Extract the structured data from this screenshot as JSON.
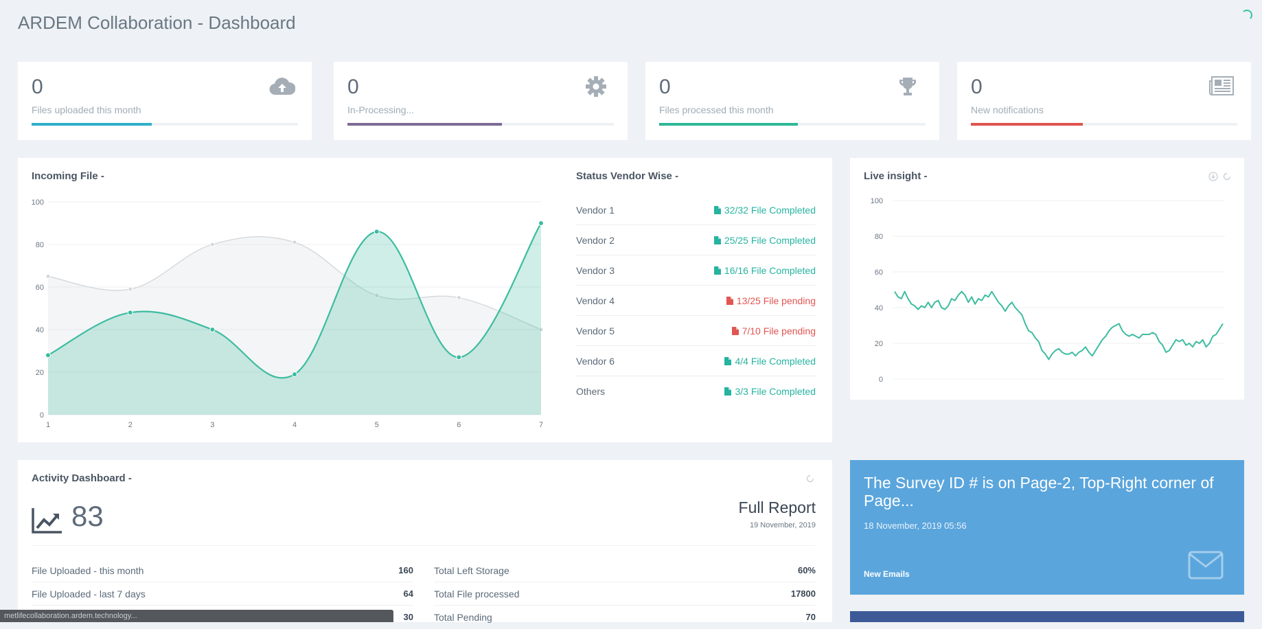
{
  "page": {
    "title": "ARDEM Collaboration - Dashboard"
  },
  "stats": [
    {
      "value": "0",
      "label": "Files uploaded this month",
      "icon": "cloud-upload-icon",
      "color": "#2fb0c8",
      "progress": 0.45
    },
    {
      "value": "0",
      "label": "In-Processing...",
      "icon": "gear-icon",
      "color": "#7c6b93",
      "progress": 0.58
    },
    {
      "value": "0",
      "label": "Files processed this month",
      "icon": "trophy-icon",
      "color": "#2db796",
      "progress": 0.52
    },
    {
      "value": "0",
      "label": "New notifications",
      "icon": "newspaper-icon",
      "color": "#e05350",
      "progress": 0.42
    }
  ],
  "incoming": {
    "title": "Incoming File -",
    "chart_data": {
      "type": "area",
      "title": "Incoming File -",
      "x": [
        1,
        2,
        3,
        4,
        5,
        6,
        7
      ],
      "ylim": [
        0,
        100
      ],
      "yticks": [
        0,
        20,
        40,
        60,
        80,
        100
      ],
      "series": [
        {
          "name": "series-gray",
          "color": "#d5d8db",
          "values": [
            65,
            59,
            80,
            81,
            56,
            55,
            40
          ]
        },
        {
          "name": "series-teal",
          "color": "#3cbca0",
          "values": [
            28,
            48,
            40,
            19,
            86,
            27,
            90
          ]
        }
      ]
    }
  },
  "vendors": {
    "title": "Status Vendor Wise -",
    "rows": [
      {
        "name": "Vendor 1",
        "status": "32/32 File Completed",
        "state": "ok"
      },
      {
        "name": "Vendor 2",
        "status": "25/25 File Completed",
        "state": "ok"
      },
      {
        "name": "Vendor 3",
        "status": "16/16 File Completed",
        "state": "ok"
      },
      {
        "name": "Vendor 4",
        "status": "13/25 File pending",
        "state": "pend"
      },
      {
        "name": "Vendor 5",
        "status": "7/10 File pending",
        "state": "pend"
      },
      {
        "name": "Vendor 6",
        "status": "4/4 File Completed",
        "state": "ok"
      },
      {
        "name": "Others",
        "status": "3/3 File Completed",
        "state": "ok"
      }
    ]
  },
  "live": {
    "title": "Live insight -",
    "chart_data": {
      "type": "line",
      "title": "Live insight -",
      "ylim": [
        0,
        100
      ],
      "yticks": [
        0,
        20,
        40,
        60,
        80,
        100
      ],
      "series": [
        {
          "name": "live",
          "color": "#3cbca0",
          "values": [
            49,
            46,
            45,
            49,
            45,
            42,
            41,
            39,
            41,
            40,
            43,
            40,
            43,
            44,
            40,
            39,
            41,
            45,
            44,
            47,
            49,
            47,
            43,
            46,
            42,
            45,
            44,
            47,
            46,
            49,
            46,
            43,
            41,
            38,
            41,
            43,
            40,
            38,
            36,
            31,
            27,
            26,
            23,
            21,
            16,
            14,
            11,
            14,
            16,
            17,
            15,
            14,
            14,
            15,
            13,
            15,
            16,
            18,
            15,
            13,
            16,
            19,
            22,
            24,
            27,
            29,
            30,
            31,
            27,
            25,
            24,
            25,
            24,
            23,
            25,
            25,
            25,
            26,
            25,
            21,
            19,
            15,
            16,
            19,
            22,
            21,
            22,
            19,
            20,
            18,
            21,
            20,
            22,
            18,
            20,
            24,
            25,
            28,
            31
          ]
        }
      ]
    }
  },
  "activity": {
    "title": "Activity Dashboard -",
    "big_value": "83",
    "report_title": "Full Report",
    "report_date": "19 November, 2019",
    "left": [
      {
        "label": "File Uploaded - this month",
        "value": "160"
      },
      {
        "label": "File Uploaded - last 7 days",
        "value": "64"
      },
      {
        "label": "",
        "value": "30"
      }
    ],
    "right": [
      {
        "label": "Total Left Storage",
        "value": "60%"
      },
      {
        "label": "Total File processed",
        "value": "17800"
      },
      {
        "label": "Total Pending",
        "value": "70"
      }
    ]
  },
  "notice": {
    "text": "The Survey ID # is on Page-2, Top-Right corner of Page...",
    "date": "18 November, 2019 05:56",
    "link": "New Emails"
  },
  "status_bar": {
    "url": "metlifecollaboration.ardem.technology..."
  }
}
